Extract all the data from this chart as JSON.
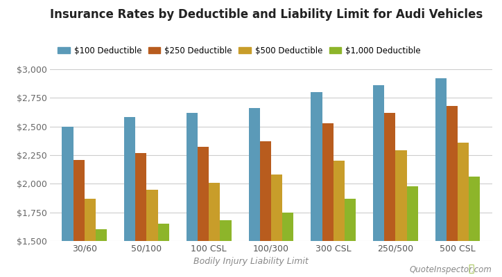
{
  "title": "Insurance Rates by Deductible and Liability Limit for Audi Vehicles",
  "xlabel": "Bodily Injury Liability Limit",
  "categories": [
    "30/60",
    "50/100",
    "100 CSL",
    "100/300",
    "300 CSL",
    "250/500",
    "500 CSL"
  ],
  "series_labels": [
    "$100 Deductible",
    "$250 Deductible",
    "$500 Deductible",
    "$1,000 Deductible"
  ],
  "series_values": [
    [
      2500,
      2580,
      2620,
      2660,
      2800,
      2860,
      2920
    ],
    [
      2210,
      2270,
      2320,
      2370,
      2530,
      2620,
      2680
    ],
    [
      1870,
      1950,
      2010,
      2080,
      2200,
      2290,
      2360
    ],
    [
      1600,
      1650,
      1680,
      1750,
      1870,
      1980,
      2060
    ]
  ],
  "colors": [
    "#5b9ab8",
    "#b85c1e",
    "#c89d2a",
    "#8db52a"
  ],
  "ylim": [
    1500,
    3000
  ],
  "yticks": [
    1500,
    1750,
    2000,
    2250,
    2500,
    2750,
    3000
  ],
  "background_color": "#ffffff",
  "plot_bg_color": "#ffffff",
  "grid_color": "#cccccc",
  "title_fontsize": 12,
  "bar_width": 0.18,
  "watermark_text": "QuoteInspector.com"
}
